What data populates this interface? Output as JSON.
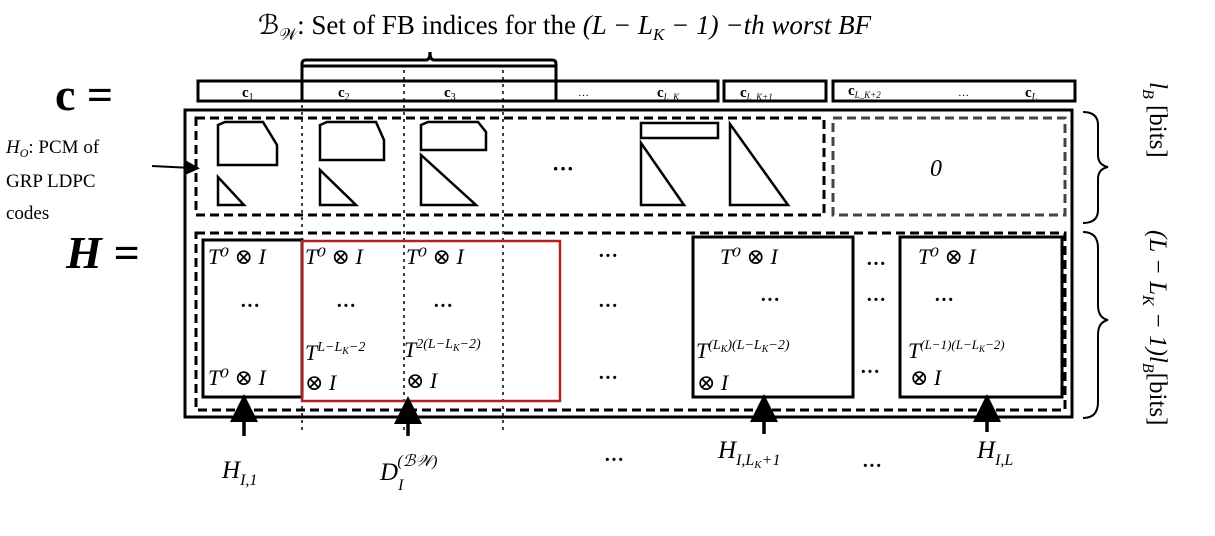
{
  "title": {
    "set": "ℬ",
    "sub": "𝒲",
    "text": ": Set of FB indices for the ",
    "expr": "(L − L",
    "expr_sub": "K",
    "expr_end": " − 1) −th worst BF"
  },
  "c_label": "c =",
  "h_label": "H =",
  "codeword": [
    {
      "base": "c",
      "sub": "1"
    },
    {
      "base": "c",
      "sub": "2"
    },
    {
      "base": "c",
      "sub": "3"
    },
    {
      "base": "c",
      "sub": "L_K"
    },
    {
      "base": "c",
      "sub": "L_K+1"
    },
    {
      "base": "c",
      "sub": "L_K+2"
    },
    {
      "base": "c",
      "sub": "L"
    }
  ],
  "ellipsis": "…",
  "dots": "···",
  "ho_label": {
    "sym": "H",
    "sub": "O",
    "line1": ": PCM of",
    "line2": "GRP LDPC",
    "line3": "codes"
  },
  "zero": "0",
  "blocks": {
    "t0": "T⁰ ⊗ I",
    "col2_power": "T",
    "col2_exp": "L−L",
    "col2_exp_sub": "K",
    "col2_exp_end": "−2",
    "col3_exp": "2(L−L",
    "col3_exp_end": "−2)",
    "lk_exp": "(L",
    "lk_exp_end": ")(L−L",
    "lk_exp_tail": "−2)",
    "l_exp": "(L−1)(L−L",
    "l_exp_end": "−2)",
    "otimes_i": "⊗ I"
  },
  "bottom_labels": {
    "h_i1": {
      "base": "H",
      "sub": "I,1"
    },
    "d_i": {
      "base": "D",
      "sub": "I",
      "sup": "(ℬ𝒲)"
    },
    "h_ilk1": {
      "base": "H",
      "sub": "I,L",
      "subsub": "K",
      "sub_end": "+1"
    },
    "h_il": {
      "base": "H",
      "sub": "I,L"
    }
  },
  "right_labels": {
    "top": "l",
    "top_sub": "B",
    "top_end": " [bits]",
    "bottom": "(L − L",
    "bottom_sub": "K",
    "bottom_mid": " − 1)l",
    "bottom_sub2": "B",
    "bottom_end": "[bits]"
  },
  "colors": {
    "highlight": "#b22222",
    "zero_box": "#444444"
  }
}
